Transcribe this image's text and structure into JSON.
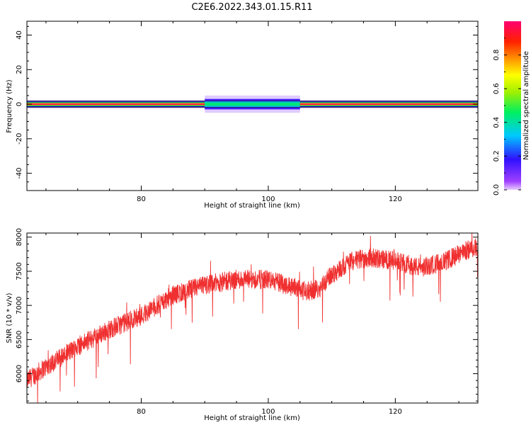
{
  "figure_title": "C2E6.2022.343.01.15.R11",
  "chart_data": [
    {
      "type": "heatmap",
      "xlabel": "Height of straight line (km)",
      "ylabel": "Frequency (Hz)",
      "xlim": [
        62,
        133
      ],
      "ylim": [
        -50,
        48
      ],
      "x_ticks": [
        80,
        100,
        120
      ],
      "y_ticks": [
        -40,
        -20,
        0,
        20,
        40
      ],
      "grid": false,
      "colorbar": {
        "label": "Normalized spectral amplitude",
        "range": [
          0,
          1
        ],
        "ticks": [
          "0.0",
          "0.2",
          "0.4",
          "0.6",
          "0.8"
        ],
        "colormap": "spectral rainbow (violet at 0 through blue, cyan, green, yellow, orange, red to pink at 1)"
      },
      "energy_band": {
        "center_frequency_hz": 0,
        "segments": [
          {
            "x": [
              62,
              90
            ],
            "peak_amplitude": 1.0,
            "halo_halfwidth_hz": 2.5
          },
          {
            "x": [
              90,
              105
            ],
            "peak_amplitude": 0.35,
            "halo_halfwidth_hz": 5
          },
          {
            "x": [
              105,
              133
            ],
            "peak_amplitude": 1.0,
            "halo_halfwidth_hz": 2.5
          }
        ]
      }
    },
    {
      "type": "line",
      "xlabel": "Height of straight line (km)",
      "ylabel": "SNR (10 * v/v)",
      "xlim": [
        62,
        133
      ],
      "ylim": [
        5570,
        8060
      ],
      "x_ticks": [
        80,
        100,
        120
      ],
      "y_ticks": [
        6000,
        6500,
        7000,
        7500,
        8000
      ],
      "grid": false,
      "series": [
        {
          "color": "#f03030",
          "trend_x": [
            62,
            65,
            70,
            75,
            80,
            85,
            90,
            95,
            100,
            103,
            106,
            108,
            110,
            113,
            116,
            120,
            124,
            128,
            131,
            133
          ],
          "trend_y": [
            5900,
            6100,
            6400,
            6650,
            6850,
            7150,
            7300,
            7380,
            7380,
            7300,
            7200,
            7250,
            7450,
            7650,
            7700,
            7650,
            7550,
            7650,
            7800,
            7850
          ],
          "noise_amplitude": 140
        }
      ]
    }
  ]
}
